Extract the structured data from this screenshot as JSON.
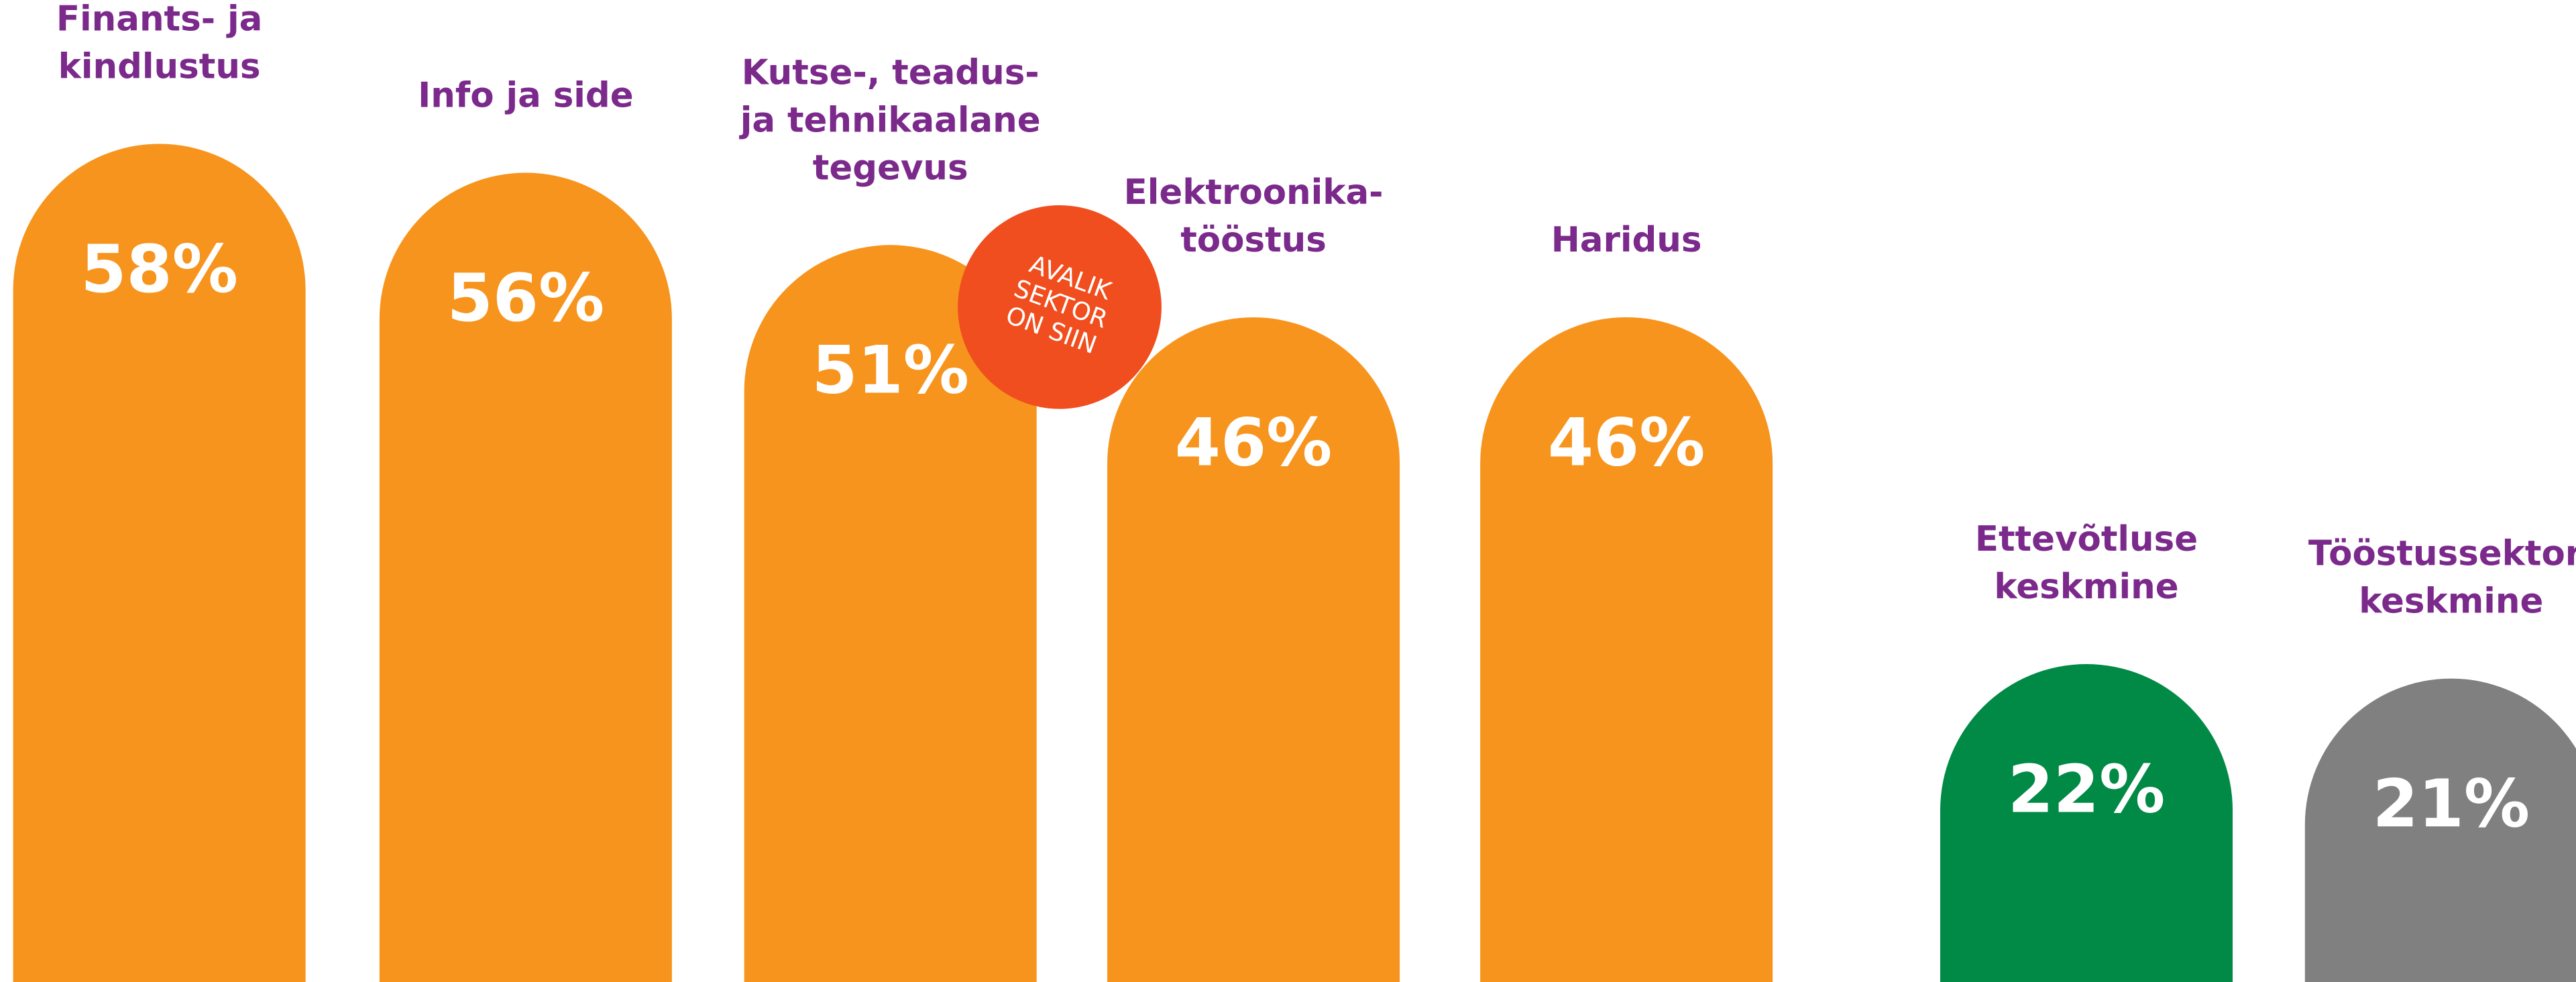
{
  "chart_data": {
    "type": "bar",
    "categories": [
      [
        "Finants- ja",
        "kindlustus"
      ],
      [
        "Info ja side"
      ],
      [
        "Kutse-, teadus-",
        "ja tehnikaalane",
        "tegevus"
      ],
      [
        "Elektroonika-",
        "tööstus"
      ],
      [
        "Haridus"
      ],
      [
        "Ettevõtluse",
        "keskmine"
      ],
      [
        "Tööstussektori",
        "keskmine"
      ]
    ],
    "values": [
      58,
      56,
      51,
      46,
      46,
      22,
      21
    ],
    "value_labels": [
      "58%",
      "56%",
      "51%",
      "46%",
      "46%",
      "22%",
      "21%"
    ],
    "colors": [
      "#f7941d",
      "#f7941d",
      "#f7941d",
      "#f7941d",
      "#f7941d",
      "#008a45",
      "#808080"
    ],
    "annotation": [
      "AVALIK",
      "SEKTOR",
      "ON SIIN"
    ],
    "annotation_color": "#f04e1e"
  }
}
